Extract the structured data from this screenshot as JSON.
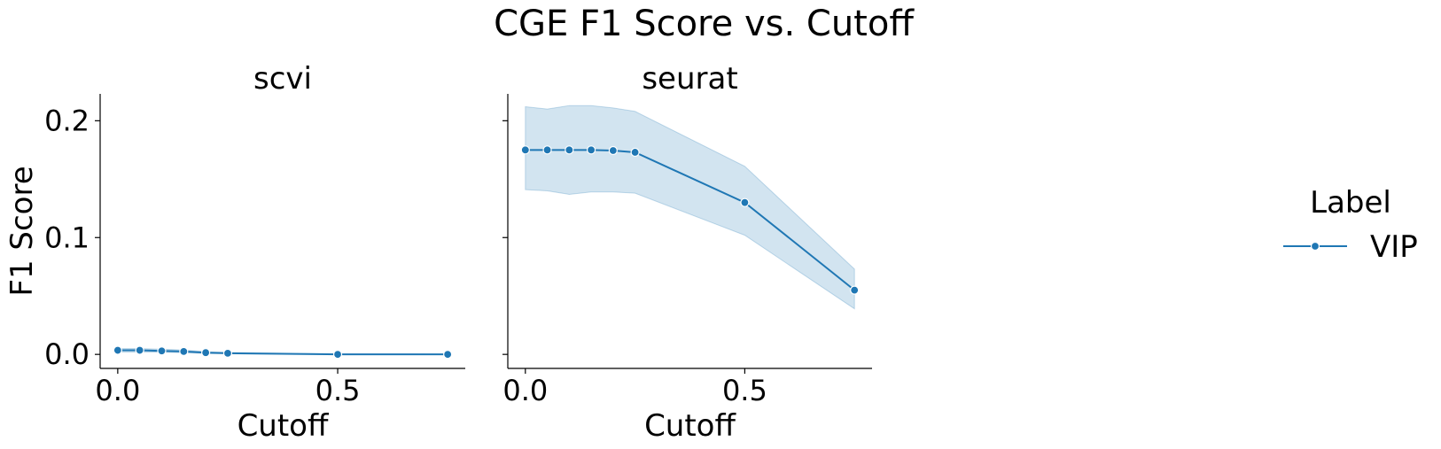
{
  "figure": {
    "title": "CGE F1 Score vs. Cutoff",
    "accent_color": "#1f77b4"
  },
  "legend": {
    "title": "Label",
    "placement": "right"
  },
  "chart_data": [
    {
      "type": "line",
      "title": "scvi",
      "xlabel": "Cutoff",
      "ylabel": "F1 Score",
      "xlim": [
        -0.04,
        0.79
      ],
      "ylim": [
        -0.012,
        0.223
      ],
      "xticks": [
        0.0,
        0.5
      ],
      "xtick_labels": [
        "0.0",
        "0.5"
      ],
      "yticks": [
        0.0,
        0.1,
        0.2
      ],
      "ytick_labels": [
        "0.0",
        "0.1",
        "0.2"
      ],
      "grid": false,
      "series": [
        {
          "name": "VIP",
          "color": "#1f77b4",
          "marker": "o",
          "x": [
            0.0,
            0.05,
            0.1,
            0.15,
            0.2,
            0.25,
            0.5,
            0.75
          ],
          "y": [
            0.0035,
            0.0035,
            0.003,
            0.0025,
            0.0015,
            0.001,
            0.0,
            0.0
          ],
          "ci_low": [
            0.002,
            0.002,
            0.0018,
            0.0015,
            0.0008,
            0.0005,
            0.0,
            0.0
          ],
          "ci_high": [
            0.005,
            0.005,
            0.0045,
            0.0037,
            0.0024,
            0.0016,
            0.0004,
            0.0003
          ]
        }
      ]
    },
    {
      "type": "line",
      "title": "seurat",
      "xlabel": "Cutoff",
      "ylabel": "",
      "xlim": [
        -0.04,
        0.79
      ],
      "ylim": [
        -0.012,
        0.223
      ],
      "xticks": [
        0.0,
        0.5
      ],
      "xtick_labels": [
        "0.0",
        "0.5"
      ],
      "yticks": [
        0.0,
        0.1,
        0.2
      ],
      "ytick_labels": [
        "",
        "",
        ""
      ],
      "grid": false,
      "series": [
        {
          "name": "VIP",
          "color": "#1f77b4",
          "marker": "o",
          "x": [
            0.0,
            0.05,
            0.1,
            0.15,
            0.2,
            0.25,
            0.5,
            0.75
          ],
          "y": [
            0.175,
            0.175,
            0.175,
            0.175,
            0.1745,
            0.173,
            0.13,
            0.055
          ],
          "ci_low": [
            0.141,
            0.14,
            0.137,
            0.139,
            0.139,
            0.138,
            0.102,
            0.039
          ],
          "ci_high": [
            0.212,
            0.21,
            0.213,
            0.213,
            0.211,
            0.208,
            0.161,
            0.073
          ]
        }
      ]
    }
  ]
}
